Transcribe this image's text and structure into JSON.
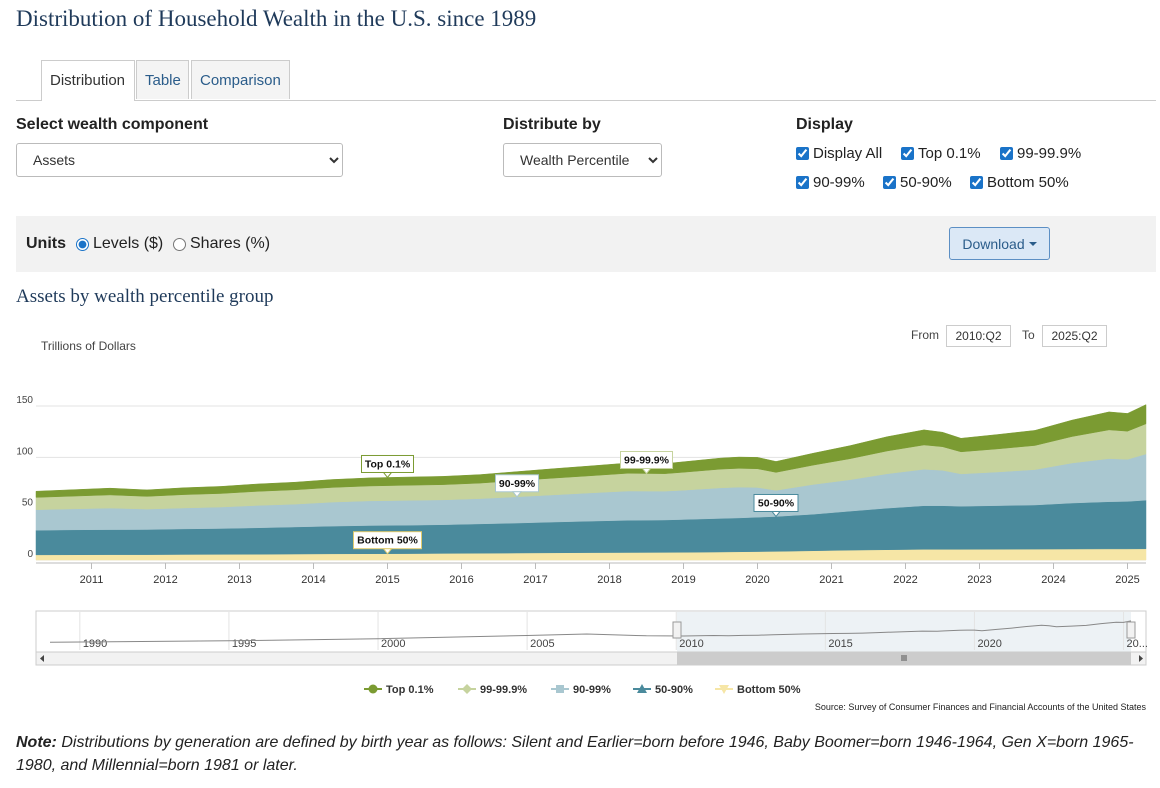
{
  "page_title": "Distribution of Household Wealth in the U.S. since 1989",
  "tabs": [
    "Distribution",
    "Table",
    "Comparison"
  ],
  "controls": {
    "component_label": "Select wealth component",
    "component_value": "Assets",
    "distribute_label": "Distribute by",
    "distribute_value": "Wealth Percentile",
    "display_label": "Display",
    "display_options": [
      "Display All",
      "Top 0.1%",
      "99-99.9%",
      "90-99%",
      "50-90%",
      "Bottom 50%"
    ]
  },
  "units": {
    "label": "Units",
    "levels": "Levels ($)",
    "shares": "Shares (%)"
  },
  "download_label": "Download",
  "chart_title": "Assets by wealth percentile group",
  "range": {
    "from_label": "From",
    "from_value": "2010:Q2",
    "to_label": "To",
    "to_value": "2025:Q2"
  },
  "navigator_ticks": [
    "1990",
    "1995",
    "2000",
    "2005",
    "2010",
    "2015",
    "2020",
    "20..."
  ],
  "source": "Source: Survey of Consumer Finances and Financial Accounts of the United States",
  "note": {
    "lead": "Note:",
    "text": " Distributions by generation are defined by birth year as follows: Silent and Earlier=born before 1946, Baby Boomer=born 1946-1964, Gen X=born 1965-1980, and Millennial=born 1981 or later."
  },
  "colors": {
    "top01": "#7b9b32",
    "p99": "#c6d39e",
    "p90": "#a9c7d0",
    "p50": "#4a8a9c",
    "bottom50": "#f6e6a6"
  },
  "chart_data": {
    "type": "area",
    "stacked": true,
    "ylabel": "Trillions of Dollars",
    "yticks": [
      0,
      50,
      100,
      150
    ],
    "ylim": [
      0,
      190
    ],
    "xlim": [
      2010.25,
      2025.25
    ],
    "xticks": [
      "2011",
      "2012",
      "2013",
      "2014",
      "2015",
      "2016",
      "2017",
      "2018",
      "2019",
      "2020",
      "2021",
      "2022",
      "2023",
      "2024",
      "2025"
    ],
    "x": [
      2010.25,
      2010.75,
      2011.25,
      2011.75,
      2012.25,
      2012.75,
      2013.25,
      2013.75,
      2014.25,
      2014.75,
      2015.25,
      2015.75,
      2016.25,
      2016.75,
      2017.25,
      2017.75,
      2018.25,
      2018.75,
      2019.0,
      2019.5,
      2019.75,
      2020.0,
      2020.25,
      2020.75,
      2021.25,
      2021.75,
      2022.25,
      2022.5,
      2022.75,
      2023.25,
      2023.75,
      2024.25,
      2024.75,
      2025.0,
      2025.25
    ],
    "series": [
      {
        "name": "Bottom 50%",
        "values": [
          5,
          5.1,
          5.2,
          5.2,
          5.4,
          5.5,
          5.6,
          5.8,
          6,
          6.1,
          6.2,
          6.4,
          6.6,
          6.8,
          7,
          7.2,
          7.3,
          7.4,
          7.5,
          7.8,
          8,
          8.2,
          8.4,
          9,
          9.6,
          10,
          10.4,
          10.4,
          10.4,
          10.5,
          10.6,
          10.7,
          10.8,
          10.8,
          10.9
        ]
      },
      {
        "name": "50-90%",
        "values": [
          24,
          24.3,
          24.4,
          24.5,
          24.9,
          25.2,
          25.8,
          26.4,
          27,
          27.5,
          27.7,
          28,
          28.6,
          29.2,
          30,
          30.7,
          31.4,
          31.6,
          32,
          32.7,
          33,
          33.5,
          34,
          35.6,
          38,
          40.5,
          42.5,
          42.5,
          42,
          42.5,
          43,
          44.8,
          46,
          46.3,
          47.4
        ]
      },
      {
        "name": "90-99%",
        "values": [
          20,
          20.4,
          21,
          19.9,
          20.4,
          20.9,
          21.8,
          22.2,
          23.4,
          24,
          24.2,
          24.2,
          24.6,
          25.6,
          26.5,
          27.5,
          28.5,
          28.1,
          28.5,
          29.8,
          30,
          29,
          25.5,
          29,
          30.6,
          33.5,
          35.5,
          34.5,
          31.5,
          32.8,
          34.5,
          39,
          42,
          41,
          45
        ]
      },
      {
        "name": "99-99.9%",
        "values": [
          12,
          12.4,
          12.8,
          12.4,
          13,
          13.2,
          13.7,
          14,
          14.3,
          14.5,
          14.7,
          14.8,
          15.1,
          15.8,
          16.3,
          16.7,
          17.3,
          17,
          17.5,
          18.2,
          18.3,
          18.2,
          17.5,
          18.8,
          20.5,
          22.2,
          23.7,
          23,
          21.5,
          22.5,
          23.5,
          25.8,
          28,
          27.4,
          29.4
        ]
      },
      {
        "name": "Top 0.1%",
        "values": [
          6,
          6.3,
          6.6,
          6.3,
          6.7,
          6.9,
          7.2,
          7.4,
          7.7,
          7.9,
          8,
          8.1,
          8.3,
          8.7,
          9.2,
          9.6,
          10,
          9.8,
          10.2,
          10.8,
          11,
          11.1,
          10.6,
          11.6,
          12.7,
          13.9,
          14.7,
          14.1,
          13.2,
          14,
          14.7,
          16,
          17.5,
          17.3,
          18.7
        ]
      }
    ],
    "annotations": [
      "Top 0.1%",
      "99-99.9%",
      "90-99%",
      "50-90%",
      "Bottom 50%"
    ]
  }
}
